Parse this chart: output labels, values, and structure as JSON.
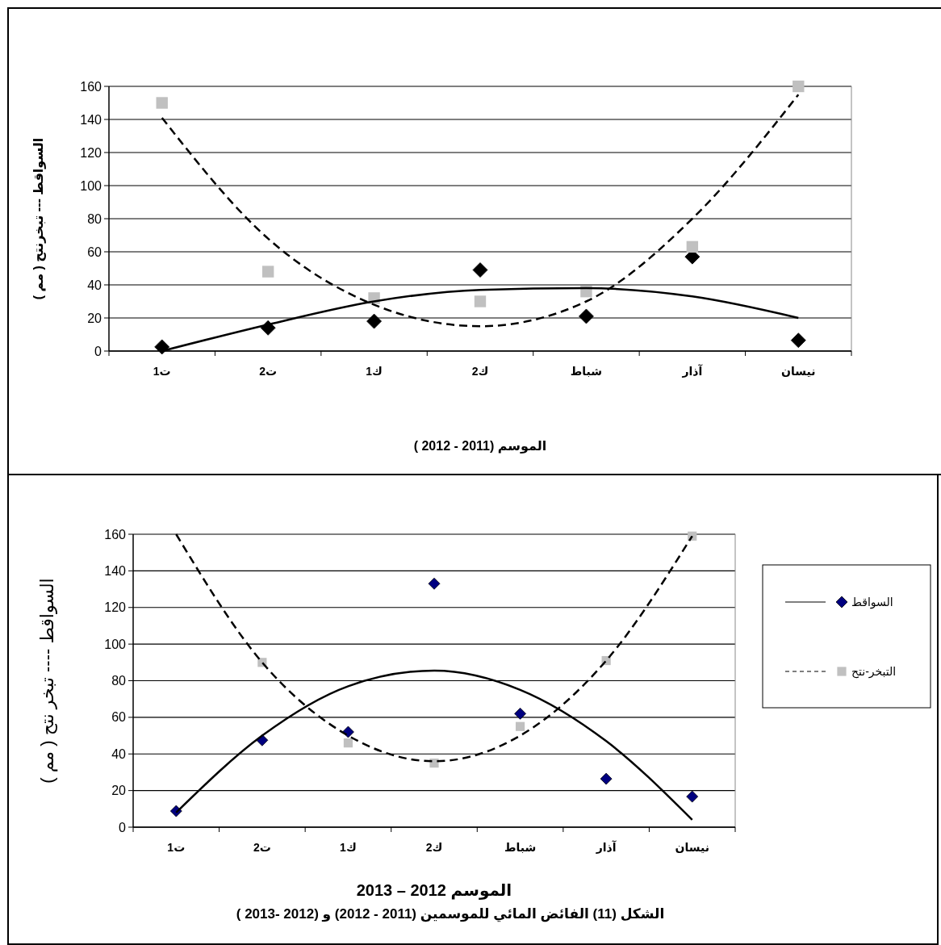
{
  "chart_data": [
    {
      "type": "scatter",
      "xlabel": "الموسم (2011 - 2012 )",
      "ylabel": "السواقط --- تبخرنتح ( مم )",
      "categories": [
        "ت1",
        "ت2",
        "ك1",
        "ك2",
        "شباط",
        "آذار",
        "نيسان"
      ],
      "ylim": [
        0,
        160
      ],
      "yticks": [
        0,
        20,
        40,
        60,
        80,
        100,
        120,
        140,
        160
      ],
      "grid": "y",
      "legend": false,
      "series": [
        {
          "color": "#000000",
          "marker": "diamond",
          "values": [
            2.5,
            14,
            18,
            49,
            21,
            57,
            6.5
          ]
        },
        {
          "color": "#c0c0c0",
          "marker": "square",
          "values": [
            150,
            48,
            32,
            30,
            36,
            63,
            160
          ]
        },
        {
          "type": "line",
          "color": "#000000",
          "line_style": "solid",
          "values": [
            0,
            16,
            30,
            37,
            38,
            33,
            20
          ]
        },
        {
          "type": "line",
          "color": "#000000",
          "line_style": "dashed",
          "values": [
            141,
            68,
            28,
            15,
            30,
            80,
            155
          ]
        }
      ]
    },
    {
      "type": "scatter",
      "xlabel": "الموسم 2012 – 2013",
      "ylabel": "السواقط ----  تبخر نتح ( مم )",
      "annotations": [
        "الشكل (11) الفائض المائي للموسمين (2011 - 2012) و (2012 -2013 )"
      ],
      "categories": [
        "ت1",
        "ت2",
        "ك1",
        "ك2",
        "شباط",
        "آذار",
        "نيسان"
      ],
      "ylim": [
        0,
        160
      ],
      "yticks": [
        0,
        20,
        40,
        60,
        80,
        100,
        120,
        140,
        160
      ],
      "grid": "y",
      "legend": "right",
      "series": [
        {
          "name": "السواقط",
          "color": "#000080",
          "marker": "diamond",
          "values": [
            8.8,
            47.5,
            52,
            133,
            62,
            26.4,
            16.7
          ]
        },
        {
          "name": "التبخر-نتح",
          "color": "#c0c0c0",
          "marker": "square",
          "values": [
            null,
            90,
            46,
            35,
            55,
            91,
            159
          ]
        },
        {
          "type": "line",
          "color": "#000000",
          "line_style": "solid",
          "values": [
            8,
            50,
            77,
            85.5,
            75,
            47,
            4
          ]
        },
        {
          "type": "line",
          "color": "#000000",
          "line_style": "dashed",
          "values": [
            160,
            90,
            50,
            36,
            50,
            91,
            159
          ]
        }
      ]
    }
  ]
}
